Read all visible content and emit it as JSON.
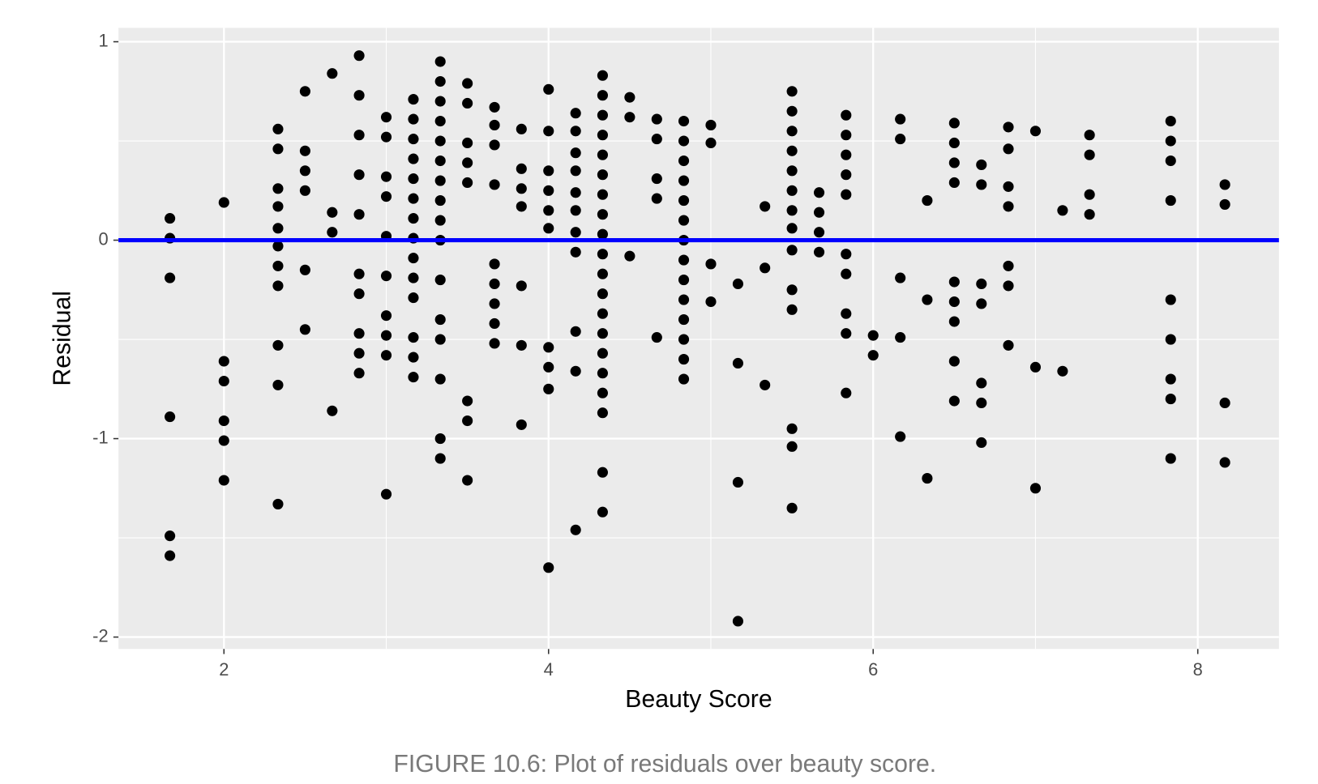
{
  "chart_data": {
    "type": "scatter",
    "x_label": "Beauty Score",
    "y_label": "Residual",
    "caption": "FIGURE 10.6: Plot of residuals over beauty score.",
    "xlim": [
      1.35,
      8.5
    ],
    "ylim": [
      -2.06,
      1.07
    ],
    "xticks": [
      2,
      4,
      6,
      8
    ],
    "yticks": [
      -2,
      -1,
      0,
      1
    ],
    "x_minor_ticks": [
      3,
      5,
      7
    ],
    "y_minor_ticks": [
      -1.5,
      -0.5,
      0.5
    ],
    "grid": true,
    "color": "#000000",
    "hline": {
      "value": 0,
      "color": "#0000ff"
    },
    "x": [
      1.667,
      1.667,
      1.667,
      1.667,
      1.667,
      1.667,
      2,
      2,
      2,
      2,
      2,
      2,
      2.333,
      2.333,
      2.333,
      2.333,
      2.333,
      2.333,
      2.333,
      2.333,
      2.333,
      2.333,
      2.333,
      2.5,
      2.5,
      2.5,
      2.5,
      2.5,
      2.5,
      2.667,
      2.667,
      2.667,
      2.667,
      2.833,
      2.833,
      2.833,
      2.833,
      2.833,
      2.833,
      2.833,
      2.833,
      2.833,
      2.833,
      3,
      3,
      3,
      3,
      3,
      3,
      3,
      3,
      3,
      3,
      3.167,
      3.167,
      3.167,
      3.167,
      3.167,
      3.167,
      3.167,
      3.167,
      3.167,
      3.167,
      3.167,
      3.167,
      3.167,
      3.167,
      3.333,
      3.333,
      3.333,
      3.333,
      3.333,
      3.333,
      3.333,
      3.333,
      3.333,
      3.333,
      3.333,
      3.333,
      3.333,
      3.333,
      3.333,
      3.333,
      3.5,
      3.5,
      3.5,
      3.5,
      3.5,
      3.5,
      3.5,
      3.5,
      3.667,
      3.667,
      3.667,
      3.667,
      3.667,
      3.667,
      3.667,
      3.667,
      3.667,
      3.833,
      3.833,
      3.833,
      3.833,
      3.833,
      3.833,
      3.833,
      4,
      4,
      4,
      4,
      4,
      4,
      4,
      4,
      4,
      4,
      4.167,
      4.167,
      4.167,
      4.167,
      4.167,
      4.167,
      4.167,
      4.167,
      4.167,
      4.167,
      4.167,
      4.333,
      4.333,
      4.333,
      4.333,
      4.333,
      4.333,
      4.333,
      4.333,
      4.333,
      4.333,
      4.333,
      4.333,
      4.333,
      4.333,
      4.333,
      4.333,
      4.333,
      4.333,
      4.333,
      4.333,
      4.5,
      4.5,
      4.5,
      4.667,
      4.667,
      4.667,
      4.667,
      4.667,
      4.833,
      4.833,
      4.833,
      4.833,
      4.833,
      4.833,
      4.833,
      4.833,
      4.833,
      4.833,
      4.833,
      4.833,
      4.833,
      4.833,
      5,
      5,
      5,
      5,
      5.167,
      5.167,
      5.167,
      5.167,
      5.333,
      5.333,
      5.333,
      5.5,
      5.5,
      5.5,
      5.5,
      5.5,
      5.5,
      5.5,
      5.5,
      5.5,
      5.5,
      5.5,
      5.5,
      5.5,
      5.5,
      5.667,
      5.667,
      5.667,
      5.667,
      5.833,
      5.833,
      5.833,
      5.833,
      5.833,
      5.833,
      5.833,
      5.833,
      5.833,
      5.833,
      6,
      6,
      6.167,
      6.167,
      6.167,
      6.167,
      6.167,
      6.333,
      6.333,
      6.333,
      6.5,
      6.5,
      6.5,
      6.5,
      6.5,
      6.5,
      6.5,
      6.5,
      6.5,
      6.667,
      6.667,
      6.667,
      6.667,
      6.667,
      6.667,
      6.667,
      6.833,
      6.833,
      6.833,
      6.833,
      6.833,
      6.833,
      6.833,
      7,
      7,
      7,
      7.167,
      7.167,
      7.333,
      7.333,
      7.333,
      7.333,
      7.833,
      7.833,
      7.833,
      7.833,
      7.833,
      7.833,
      7.833,
      7.833,
      7.833,
      8.167,
      8.167,
      8.167,
      8.167
    ],
    "values": [
      0.11,
      0.01,
      -0.19,
      -0.89,
      -1.49,
      -1.59,
      0.19,
      -0.61,
      -0.71,
      -0.91,
      -1.01,
      -1.21,
      0.56,
      0.46,
      0.26,
      0.17,
      0.06,
      -0.03,
      -0.13,
      -0.23,
      -0.53,
      -0.73,
      -1.33,
      0.75,
      0.45,
      0.35,
      0.25,
      -0.15,
      -0.45,
      0.84,
      0.14,
      0.04,
      -0.86,
      0.93,
      0.73,
      0.53,
      0.33,
      0.13,
      -0.17,
      -0.27,
      -0.47,
      -0.57,
      -0.67,
      0.62,
      0.52,
      0.32,
      0.22,
      0.02,
      -0.18,
      -0.38,
      -0.48,
      -0.58,
      -1.28,
      0.71,
      0.61,
      0.51,
      0.41,
      0.31,
      0.21,
      0.11,
      0.01,
      -0.09,
      -0.19,
      -0.29,
      -0.49,
      -0.59,
      -0.69,
      0.9,
      0.8,
      0.7,
      0.6,
      0.5,
      0.4,
      0.3,
      0.2,
      0.1,
      0,
      -0.2,
      -0.4,
      -0.5,
      -0.7,
      -1,
      -1.1,
      0.79,
      0.69,
      0.49,
      0.39,
      0.29,
      -0.81,
      -0.91,
      -1.21,
      0.67,
      0.58,
      0.48,
      0.28,
      -0.12,
      -0.22,
      -0.32,
      -0.42,
      -0.52,
      0.56,
      0.36,
      0.26,
      0.17,
      -0.23,
      -0.53,
      -0.93,
      0.76,
      0.55,
      0.35,
      0.25,
      0.15,
      0.06,
      -0.54,
      -0.64,
      -0.75,
      -1.65,
      0.64,
      0.55,
      0.44,
      0.35,
      0.24,
      0.15,
      0.04,
      -0.06,
      -0.46,
      -0.66,
      -1.46,
      0.83,
      0.73,
      0.63,
      0.53,
      0.43,
      0.33,
      0.23,
      0.13,
      0.03,
      -0.07,
      -0.17,
      -0.27,
      -0.37,
      -0.47,
      -0.57,
      -0.67,
      -0.77,
      -0.87,
      -1.17,
      -1.37,
      0.72,
      0.62,
      -0.08,
      0.61,
      0.51,
      0.31,
      0.21,
      -0.49,
      0.6,
      0.5,
      0.4,
      0.3,
      0.2,
      0.1,
      0,
      -0.1,
      -0.2,
      -0.3,
      -0.4,
      -0.5,
      -0.6,
      -0.7,
      0.58,
      0.49,
      -0.12,
      -0.31,
      -0.22,
      -0.62,
      -1.22,
      -1.92,
      0.17,
      -0.14,
      -0.73,
      0.75,
      0.65,
      0.55,
      0.45,
      0.35,
      0.25,
      0.15,
      0.06,
      -0.05,
      -0.25,
      -0.35,
      -0.95,
      -1.04,
      -1.35,
      0.24,
      0.14,
      0.04,
      -0.06,
      0.63,
      0.53,
      0.43,
      0.33,
      0.23,
      -0.07,
      -0.17,
      -0.37,
      -0.47,
      -0.77,
      -0.48,
      -0.58,
      0.61,
      0.51,
      -0.19,
      -0.49,
      -0.99,
      0.2,
      -0.3,
      -1.2,
      0.59,
      0.49,
      0.39,
      0.29,
      -0.21,
      -0.31,
      -0.41,
      -0.61,
      -0.81,
      0.38,
      0.28,
      -0.22,
      -0.32,
      -0.72,
      -0.82,
      -1.02,
      0.57,
      0.46,
      0.27,
      0.17,
      -0.13,
      -0.23,
      -0.53,
      0.55,
      -0.64,
      -1.25,
      0.15,
      -0.66,
      0.53,
      0.43,
      0.23,
      0.13,
      0.6,
      0.5,
      0.4,
      0.2,
      -0.3,
      -0.5,
      -0.7,
      -0.8,
      -1.1,
      0.28,
      0.18,
      -0.82,
      -1.12
    ]
  }
}
